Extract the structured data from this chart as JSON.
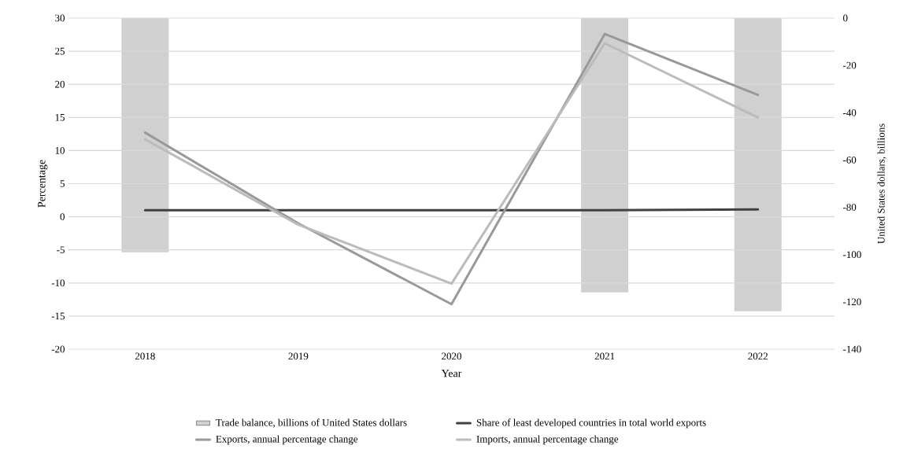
{
  "chart_data": {
    "type": "line",
    "xlabel": "Year",
    "ylabel": "Percentage",
    "y2label": "United States dollars, billions",
    "categories": [
      "2018",
      "2019",
      "2020",
      "2021",
      "2022"
    ],
    "series": [
      {
        "name": "Trade balance, billions of United States dollars",
        "type": "bar",
        "axis": "y2",
        "color": "#d0d0d0",
        "values": [
          -99,
          null,
          null,
          -116,
          -124
        ]
      },
      {
        "name": "Share of least developed countries in total world exports",
        "color": "#404040",
        "values": [
          1.0,
          1.0,
          1.0,
          1.0,
          1.1
        ]
      },
      {
        "name": "Exports, annual percentage change",
        "color": "#999999",
        "values": [
          12.7,
          -1.0,
          -13.2,
          27.6,
          18.4
        ]
      },
      {
        "name": "Imports, annual percentage change",
        "color": "#bbbbbb",
        "values": [
          11.7,
          -1.2,
          -10.1,
          26.2,
          15.0
        ]
      }
    ],
    "ylim": [
      -20,
      30
    ],
    "yticks": [
      -20,
      -15,
      -10,
      -5,
      0,
      5,
      10,
      15,
      20,
      25,
      30
    ],
    "y2lim": [
      -140,
      0
    ],
    "y2ticks": [
      -140,
      -120,
      -100,
      -80,
      -60,
      -40,
      -20,
      0
    ],
    "grid": "y",
    "legend": "bottom",
    "marker": "none",
    "line_style": "solid"
  }
}
